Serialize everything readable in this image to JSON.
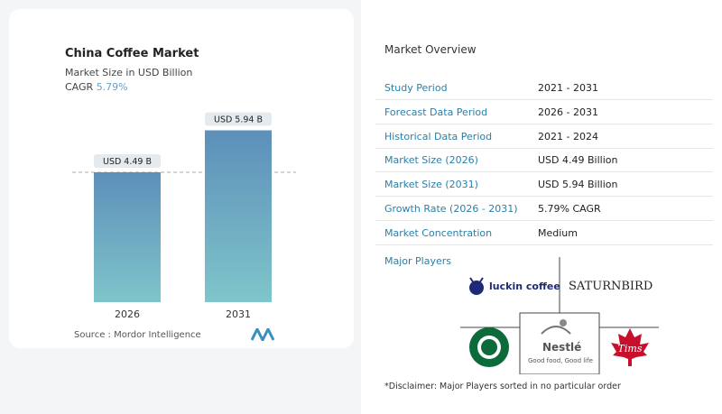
{
  "chart_data": {
    "type": "bar",
    "title": "China Coffee Market",
    "subtitle": "Market Size in USD Billion",
    "cagr_label": "CAGR",
    "cagr_value": "5.79%",
    "categories": [
      "2026",
      "2031"
    ],
    "values": [
      4.49,
      5.94
    ],
    "data_labels": [
      "USD 4.49 B",
      "USD 5.94 B"
    ],
    "colors": {
      "bar_top": "#5d8fba",
      "bar_bottom": "#7fc5ca"
    },
    "source": "Source :  Mordor Intelligence"
  },
  "overview": {
    "title": "Market Overview",
    "rows": [
      {
        "k": "Study Period",
        "v": "2021 - 2031"
      },
      {
        "k": "Forecast Data Period",
        "v": "2026 - 2031"
      },
      {
        "k": "Historical Data Period",
        "v": "2021 - 2024"
      },
      {
        "k": "Market Size (2026)",
        "v": "USD 4.49 Billion"
      },
      {
        "k": "Market Size (2031)",
        "v": "USD 5.94 Billion"
      },
      {
        "k": "Growth Rate (2026 - 2031)",
        "v": "5.79% CAGR"
      },
      {
        "k": "Market Concentration",
        "v": "Medium"
      }
    ],
    "major_players_label": "Major Players",
    "players": [
      "luckin coffee",
      "SATURNBIRD",
      "Starbucks",
      "Nestlé",
      "Tims"
    ],
    "nestle_tagline": "Good food, Good life",
    "disclaimer": "*Disclaimer: Major Players sorted in no particular order"
  }
}
